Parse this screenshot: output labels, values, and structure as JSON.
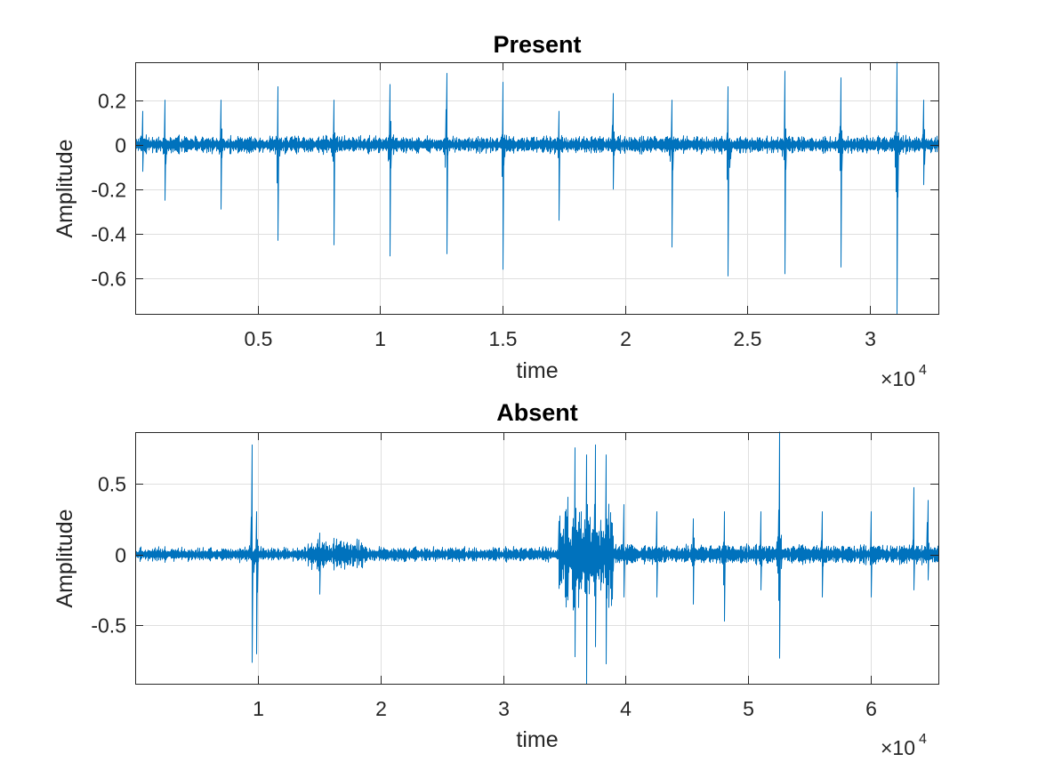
{
  "chart_data": [
    {
      "type": "line",
      "title": "Present",
      "xlabel": "time",
      "ylabel": "Amplitude",
      "x_exponent_label": "×10",
      "x_exponent_power": "4",
      "xlim": [
        0,
        32800
      ],
      "ylim": [
        -0.76,
        0.37
      ],
      "xticks": [
        5000,
        10000,
        15000,
        20000,
        25000,
        30000
      ],
      "xtick_labels": [
        "0.5",
        "1",
        "1.5",
        "2",
        "2.5",
        "3"
      ],
      "yticks": [
        0.2,
        0,
        -0.2,
        -0.4,
        -0.6
      ],
      "ytick_labels": [
        "0.2",
        "0",
        "-0.2",
        "-0.4",
        "-0.6"
      ],
      "grid": true,
      "series": [
        {
          "color": "#0072BD",
          "noise_amplitude": 0.03,
          "spikes": [
            {
              "x": 300,
              "y_max": 0.15,
              "y_min": -0.12
            },
            {
              "x": 1200,
              "y_max": 0.2,
              "y_min": -0.25
            },
            {
              "x": 3500,
              "y_max": 0.2,
              "y_min": -0.29
            },
            {
              "x": 5800,
              "y_max": 0.26,
              "y_min": -0.43
            },
            {
              "x": 8100,
              "y_max": 0.2,
              "y_min": -0.45
            },
            {
              "x": 10400,
              "y_max": 0.27,
              "y_min": -0.5
            },
            {
              "x": 12700,
              "y_max": 0.32,
              "y_min": -0.49
            },
            {
              "x": 15000,
              "y_max": 0.28,
              "y_min": -0.56
            },
            {
              "x": 17300,
              "y_max": 0.15,
              "y_min": -0.34
            },
            {
              "x": 19500,
              "y_max": 0.23,
              "y_min": -0.2
            },
            {
              "x": 21900,
              "y_max": 0.2,
              "y_min": -0.46
            },
            {
              "x": 24200,
              "y_max": 0.26,
              "y_min": -0.59
            },
            {
              "x": 26500,
              "y_max": 0.33,
              "y_min": -0.58
            },
            {
              "x": 28800,
              "y_max": 0.3,
              "y_min": -0.55
            },
            {
              "x": 31100,
              "y_max": 0.37,
              "y_min": -0.76
            },
            {
              "x": 32200,
              "y_max": 0.2,
              "y_min": -0.18
            }
          ]
        }
      ]
    },
    {
      "type": "line",
      "title": "Absent",
      "xlabel": "time",
      "ylabel": "Amplitude",
      "x_exponent_label": "×10",
      "x_exponent_power": "4",
      "xlim": [
        0,
        65500
      ],
      "ylim": [
        -0.91,
        0.86
      ],
      "xticks": [
        10000,
        20000,
        30000,
        40000,
        50000,
        60000
      ],
      "xtick_labels": [
        "1",
        "2",
        "3",
        "4",
        "5",
        "6"
      ],
      "yticks": [
        0.5,
        0,
        -0.5
      ],
      "ytick_labels": [
        "0.5",
        "0",
        "-0.5"
      ],
      "grid": true,
      "series": [
        {
          "color": "#0072BD",
          "noise_amplitude": 0.04,
          "spikes": [
            {
              "x": 9500,
              "y_max": 0.77,
              "y_min": -0.76
            },
            {
              "x": 9900,
              "y_max": 0.3,
              "y_min": -0.7
            },
            {
              "x": 15000,
              "y_max": 0.15,
              "y_min": -0.28
            },
            {
              "x": 35000,
              "y_max": 0.3,
              "y_min": -0.3
            },
            {
              "x": 35800,
              "y_max": 0.75,
              "y_min": -0.72
            },
            {
              "x": 36800,
              "y_max": 0.7,
              "y_min": -0.91
            },
            {
              "x": 37500,
              "y_max": 0.77,
              "y_min": -0.65
            },
            {
              "x": 38400,
              "y_max": 0.7,
              "y_min": -0.77
            },
            {
              "x": 39800,
              "y_max": 0.35,
              "y_min": -0.3
            },
            {
              "x": 42500,
              "y_max": 0.3,
              "y_min": -0.3
            },
            {
              "x": 45500,
              "y_max": 0.25,
              "y_min": -0.35
            },
            {
              "x": 48000,
              "y_max": 0.3,
              "y_min": -0.47
            },
            {
              "x": 51000,
              "y_max": 0.3,
              "y_min": -0.25
            },
            {
              "x": 52500,
              "y_max": 0.86,
              "y_min": -0.73
            },
            {
              "x": 56000,
              "y_max": 0.3,
              "y_min": -0.3
            },
            {
              "x": 60000,
              "y_max": 0.3,
              "y_min": -0.3
            },
            {
              "x": 63500,
              "y_max": 0.47,
              "y_min": -0.25
            },
            {
              "x": 64600,
              "y_max": 0.38,
              "y_min": -0.18
            }
          ],
          "bursts": [
            {
              "x_start": 14000,
              "x_end": 18500,
              "amplitude": 0.12
            },
            {
              "x_start": 34500,
              "x_end": 39000,
              "amplitude": 0.45
            },
            {
              "x_start": 39000,
              "x_end": 65500,
              "amplitude": 0.08
            }
          ]
        }
      ]
    }
  ]
}
